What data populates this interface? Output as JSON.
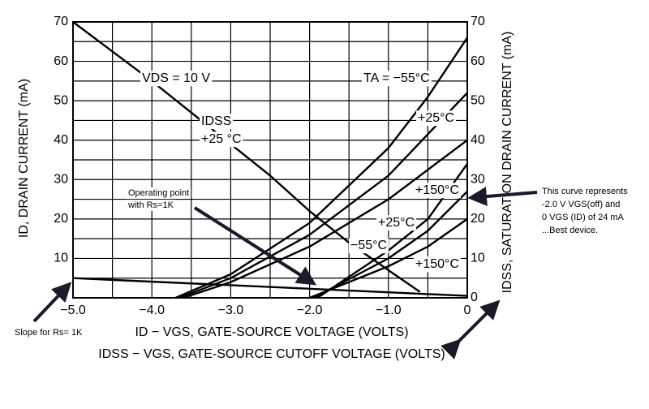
{
  "chart_data": {
    "type": "line",
    "x_title": "ID − VGS, GATE-SOURCE VOLTAGE (VOLTS)",
    "x_title_2": "IDSS − VGS, GATE-SOURCE CUTOFF VOLTAGE (VOLTS)",
    "y_title": "ID, DRAIN CURRENT (mA)",
    "y2_title": "IDSS, SATURATION DRAIN CURRENT (mA)",
    "xlim": [
      -5,
      0
    ],
    "ylim": [
      0,
      70
    ],
    "y2lim": [
      0,
      70
    ],
    "xticks": [
      {
        "value": -5,
        "label": "−5.0"
      },
      {
        "value": -4,
        "label": "−4.0"
      },
      {
        "value": -3,
        "label": "−3.0"
      },
      {
        "value": -2,
        "label": "−2.0"
      },
      {
        "value": -1,
        "label": "−1.0"
      },
      0
    ],
    "yticks": [
      10,
      20,
      30,
      40,
      50,
      60,
      70
    ],
    "y2ticks": [
      0,
      10,
      20,
      30,
      40,
      50,
      60,
      70
    ],
    "x_minor_grid": [
      -4.5,
      -3.5,
      -2.5,
      -1.5,
      -0.5
    ],
    "y_minor_grid": [
      5,
      15,
      25,
      35,
      45,
      55,
      65
    ],
    "grid": true,
    "color": "#000000",
    "series": [
      {
        "x": [
          -5,
          -4,
          -3,
          -2.5,
          -2,
          -1.5,
          -1,
          -0.6
        ],
        "values": [
          70,
          55,
          39,
          31,
          22,
          14,
          7,
          1.5
        ]
      },
      {
        "x": [
          -3.7,
          -3,
          -2,
          -1,
          -0.5,
          0
        ],
        "values": [
          0,
          6,
          19,
          38,
          51,
          66
        ]
      },
      {
        "x": [
          -3.65,
          -3,
          -2,
          -1,
          0
        ],
        "values": [
          0,
          5,
          16,
          31,
          52
        ]
      },
      {
        "x": [
          -3.6,
          -3,
          -2,
          -1,
          0
        ],
        "values": [
          0,
          4,
          13,
          25,
          40
        ]
      },
      {
        "x": [
          -1.9,
          -1,
          -0.5,
          0
        ],
        "values": [
          0,
          12,
          20,
          34
        ]
      },
      {
        "x": [
          -1.95,
          -1,
          -0.5,
          0
        ],
        "values": [
          0,
          10,
          17,
          27
        ]
      },
      {
        "x": [
          -2,
          -1,
          -0.5,
          0
        ],
        "values": [
          0,
          8,
          13,
          20
        ]
      },
      {
        "x": [
          -5,
          0
        ],
        "values": [
          5,
          0.5
        ]
      }
    ],
    "annotations": [
      "VDS = 10 V",
      "TA = −55°C",
      "IDSS",
      "+25 °C",
      "+25°C",
      "+150°C",
      "+25°C",
      "−55°C",
      "+150°C",
      "Operating point",
      "with Rs=1K",
      "This curve represents",
      "-2.0 V VGS(off) and",
      "0 VGS (ID) of 24 mA",
      "...Best device.",
      "Slope for Rs= 1K"
    ]
  }
}
